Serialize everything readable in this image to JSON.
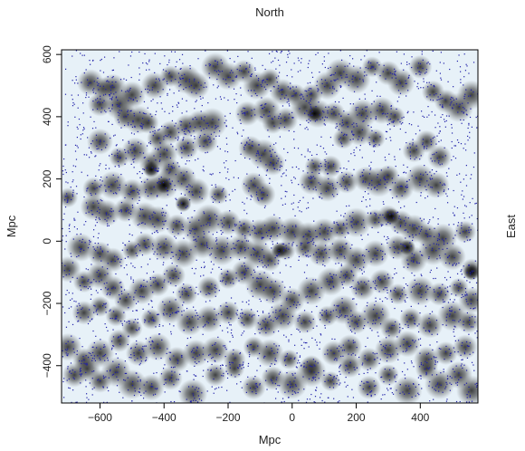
{
  "chart_data": {
    "type": "scatter",
    "title": "North",
    "right_label": "East",
    "xlabel": "Mpc",
    "ylabel": "Mpc",
    "xlim": [
      -720,
      580
    ],
    "ylim": [
      -520,
      615
    ],
    "xticks": [
      -600,
      -400,
      -200,
      0,
      200,
      400
    ],
    "yticks": [
      -400,
      -200,
      0,
      200,
      400,
      600
    ],
    "colors": {
      "background": "#e7f1f8",
      "blob": "#2b2b2b",
      "point": "#1e1ea8",
      "axis": "#000000"
    },
    "clusters": [
      [
        -630,
        510
      ],
      [
        -590,
        490
      ],
      [
        -560,
        495
      ],
      [
        -540,
        440
      ],
      [
        -500,
        470
      ],
      [
        -430,
        500
      ],
      [
        -380,
        530
      ],
      [
        -330,
        520
      ],
      [
        -300,
        500
      ],
      [
        -240,
        560
      ],
      [
        -200,
        530
      ],
      [
        -150,
        545
      ],
      [
        -110,
        500
      ],
      [
        -70,
        520
      ],
      [
        -30,
        480
      ],
      [
        10,
        470
      ],
      [
        60,
        470
      ],
      [
        110,
        500
      ],
      [
        150,
        540
      ],
      [
        200,
        520
      ],
      [
        250,
        560
      ],
      [
        300,
        540
      ],
      [
        340,
        510
      ],
      [
        400,
        560
      ],
      [
        440,
        480
      ],
      [
        480,
        450
      ],
      [
        520,
        430
      ],
      [
        560,
        470
      ],
      [
        -600,
        440
      ],
      [
        -520,
        400
      ],
      [
        -480,
        390
      ],
      [
        -450,
        380
      ],
      [
        -420,
        330
      ],
      [
        -380,
        350
      ],
      [
        -330,
        370
      ],
      [
        -290,
        380
      ],
      [
        -250,
        380
      ],
      [
        -140,
        410
      ],
      [
        -80,
        420
      ],
      [
        -60,
        380
      ],
      [
        -20,
        390
      ],
      [
        40,
        430
      ],
      [
        80,
        410
      ],
      [
        130,
        410
      ],
      [
        170,
        380
      ],
      [
        220,
        410
      ],
      [
        280,
        420
      ],
      [
        320,
        400
      ],
      [
        -600,
        320
      ],
      [
        -540,
        270
      ],
      [
        -490,
        290
      ],
      [
        -440,
        250
      ],
      [
        -400,
        280
      ],
      [
        -380,
        230
      ],
      [
        -330,
        300
      ],
      [
        -270,
        320
      ],
      [
        -130,
        300
      ],
      [
        -90,
        280
      ],
      [
        -60,
        250
      ],
      [
        70,
        240
      ],
      [
        120,
        240
      ],
      [
        160,
        330
      ],
      [
        210,
        350
      ],
      [
        260,
        330
      ],
      [
        380,
        290
      ],
      [
        420,
        320
      ],
      [
        460,
        270
      ],
      [
        -620,
        170
      ],
      [
        -560,
        180
      ],
      [
        -500,
        160
      ],
      [
        -440,
        170
      ],
      [
        -400,
        180
      ],
      [
        -340,
        200
      ],
      [
        -300,
        160
      ],
      [
        -230,
        150
      ],
      [
        -120,
        180
      ],
      [
        -90,
        150
      ],
      [
        60,
        190
      ],
      [
        110,
        170
      ],
      [
        170,
        190
      ],
      [
        230,
        200
      ],
      [
        270,
        190
      ],
      [
        300,
        210
      ],
      [
        340,
        170
      ],
      [
        400,
        200
      ],
      [
        450,
        180
      ],
      [
        -700,
        140
      ],
      [
        -620,
        110
      ],
      [
        -580,
        90
      ],
      [
        -520,
        100
      ],
      [
        -460,
        80
      ],
      [
        -420,
        70
      ],
      [
        -360,
        50
      ],
      [
        -300,
        40
      ],
      [
        -260,
        70
      ],
      [
        -200,
        60
      ],
      [
        -150,
        40
      ],
      [
        -100,
        30
      ],
      [
        -60,
        40
      ],
      [
        0,
        30
      ],
      [
        50,
        20
      ],
      [
        100,
        30
      ],
      [
        150,
        40
      ],
      [
        200,
        60
      ],
      [
        260,
        70
      ],
      [
        300,
        80
      ],
      [
        340,
        60
      ],
      [
        380,
        40
      ],
      [
        420,
        20
      ],
      [
        470,
        10
      ],
      [
        540,
        30
      ],
      [
        -660,
        -20
      ],
      [
        -600,
        -40
      ],
      [
        -560,
        -60
      ],
      [
        -500,
        -30
      ],
      [
        -460,
        -10
      ],
      [
        -400,
        -20
      ],
      [
        -340,
        -40
      ],
      [
        -280,
        -10
      ],
      [
        -220,
        -30
      ],
      [
        -160,
        -20
      ],
      [
        -110,
        -40
      ],
      [
        -70,
        -60
      ],
      [
        -20,
        -30
      ],
      [
        40,
        -20
      ],
      [
        90,
        -40
      ],
      [
        150,
        -30
      ],
      [
        200,
        -60
      ],
      [
        260,
        -40
      ],
      [
        330,
        -20
      ],
      [
        380,
        -60
      ],
      [
        440,
        -30
      ],
      [
        500,
        -50
      ],
      [
        560,
        -90
      ],
      [
        -700,
        -90
      ],
      [
        -650,
        -130
      ],
      [
        -600,
        -110
      ],
      [
        -560,
        -150
      ],
      [
        -520,
        -190
      ],
      [
        -470,
        -160
      ],
      [
        -420,
        -140
      ],
      [
        -370,
        -110
      ],
      [
        -330,
        -170
      ],
      [
        -260,
        -150
      ],
      [
        -200,
        -120
      ],
      [
        -150,
        -100
      ],
      [
        -100,
        -140
      ],
      [
        -60,
        -160
      ],
      [
        0,
        -190
      ],
      [
        60,
        -160
      ],
      [
        120,
        -130
      ],
      [
        170,
        -110
      ],
      [
        220,
        -150
      ],
      [
        280,
        -130
      ],
      [
        330,
        -170
      ],
      [
        400,
        -160
      ],
      [
        460,
        -170
      ],
      [
        520,
        -150
      ],
      [
        560,
        -190
      ],
      [
        -650,
        -230
      ],
      [
        -600,
        -210
      ],
      [
        -550,
        -240
      ],
      [
        -500,
        -280
      ],
      [
        -440,
        -250
      ],
      [
        -380,
        -220
      ],
      [
        -320,
        -260
      ],
      [
        -260,
        -250
      ],
      [
        -200,
        -230
      ],
      [
        -140,
        -250
      ],
      [
        -80,
        -270
      ],
      [
        -30,
        -240
      ],
      [
        40,
        -260
      ],
      [
        110,
        -240
      ],
      [
        160,
        -220
      ],
      [
        200,
        -260
      ],
      [
        260,
        -240
      ],
      [
        310,
        -280
      ],
      [
        370,
        -250
      ],
      [
        430,
        -270
      ],
      [
        500,
        -240
      ],
      [
        550,
        -260
      ],
      [
        -700,
        -340
      ],
      [
        -650,
        -380
      ],
      [
        -600,
        -360
      ],
      [
        -540,
        -320
      ],
      [
        -480,
        -360
      ],
      [
        -420,
        -340
      ],
      [
        -360,
        -380
      ],
      [
        -300,
        -360
      ],
      [
        -240,
        -350
      ],
      [
        -180,
        -380
      ],
      [
        -120,
        -340
      ],
      [
        -70,
        -360
      ],
      [
        -10,
        -380
      ],
      [
        60,
        -400
      ],
      [
        130,
        -360
      ],
      [
        180,
        -340
      ],
      [
        240,
        -380
      ],
      [
        300,
        -350
      ],
      [
        360,
        -330
      ],
      [
        420,
        -380
      ],
      [
        480,
        -360
      ],
      [
        540,
        -340
      ],
      [
        -680,
        -430
      ],
      [
        -640,
        -410
      ],
      [
        -600,
        -450
      ],
      [
        -550,
        -420
      ],
      [
        -500,
        -460
      ],
      [
        -440,
        -470
      ],
      [
        -380,
        -440
      ],
      [
        -310,
        -490
      ],
      [
        -240,
        -430
      ],
      [
        -180,
        -410
      ],
      [
        -120,
        -470
      ],
      [
        -60,
        -440
      ],
      [
        0,
        -460
      ],
      [
        60,
        -420
      ],
      [
        120,
        -450
      ],
      [
        180,
        -400
      ],
      [
        240,
        -470
      ],
      [
        300,
        -430
      ],
      [
        360,
        -480
      ],
      [
        420,
        -410
      ],
      [
        460,
        -460
      ],
      [
        520,
        -430
      ],
      [
        560,
        -480
      ]
    ],
    "dark_spots": [
      [
        -440,
        230
      ],
      [
        -400,
        180
      ],
      [
        -340,
        120
      ],
      [
        70,
        410
      ],
      [
        310,
        80
      ],
      [
        360,
        -20
      ],
      [
        -40,
        -30
      ],
      [
        560,
        -100
      ]
    ]
  }
}
